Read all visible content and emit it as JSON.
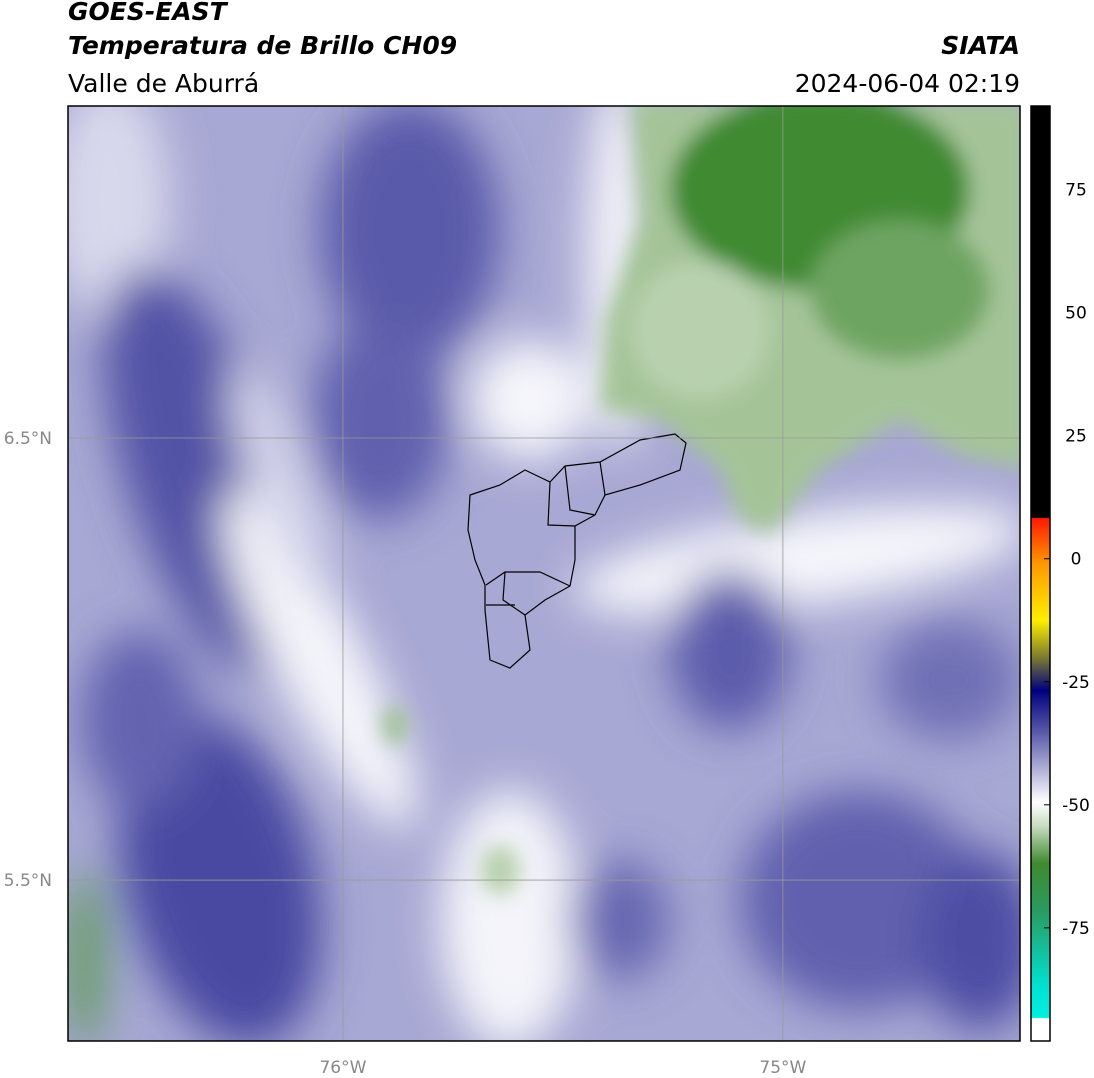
{
  "header": {
    "title": "GOES-EAST",
    "subtitle": "Temperatura de Brillo CH09",
    "region": "Valle de Aburrá",
    "source": "SIATA",
    "timestamp": "2024-06-04 02:19"
  },
  "map": {
    "xlim": [
      -76.625,
      -74.461
    ],
    "ylim": [
      5.136,
      7.251
    ],
    "xticks": [
      {
        "value": -76,
        "label": "76°W"
      },
      {
        "value": -75,
        "label": "75°W"
      }
    ],
    "yticks": [
      {
        "value": 6.5,
        "label": "6.5°N"
      },
      {
        "value": 5.5,
        "label": "5.5°N"
      }
    ],
    "grid": true
  },
  "colorbar": {
    "lim": [
      -98,
      92
    ],
    "ticks": [
      75,
      50,
      25,
      0,
      -25,
      -50,
      -75
    ]
  }
}
